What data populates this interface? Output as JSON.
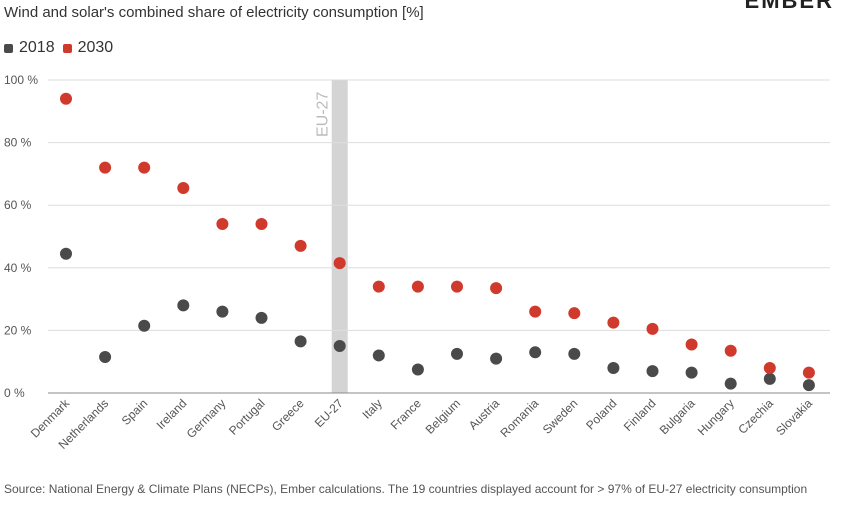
{
  "title": "Wind and solar's combined share of electricity consumption [%]",
  "logo_text": "EMBER",
  "source": "Source: National Energy & Climate Plans (NECPs), Ember calculations. The 19 countries displayed account for > 97% of EU-27 electricity consumption",
  "colors": {
    "series_2018": "#4a4a4a",
    "series_2030": "#d03a2c",
    "highlight_band": "#d4d4d4",
    "grid": "#dddddd",
    "axis": "#888888"
  },
  "chart_data": {
    "type": "scatter",
    "categories": [
      "Denmark",
      "Netherlands",
      "Spain",
      "Ireland",
      "Germany",
      "Portugal",
      "Greece",
      "EU-27",
      "Italy",
      "France",
      "Belgium",
      "Austria",
      "Romania",
      "Sweden",
      "Poland",
      "Finland",
      "Bulgaria",
      "Hungary",
      "Czechia",
      "Slovakia"
    ],
    "highlight_category": "EU-27",
    "highlight_label": "EU-27",
    "series": [
      {
        "name": "2018",
        "values": [
          44.5,
          11.5,
          21.5,
          28,
          26,
          24,
          16.5,
          15,
          12,
          7.5,
          12.5,
          11,
          13,
          12.5,
          8,
          7,
          6.5,
          3,
          4.5,
          2.5
        ]
      },
      {
        "name": "2030",
        "values": [
          94,
          72,
          72,
          65.5,
          54,
          54,
          47,
          41.5,
          34,
          34,
          34,
          33.5,
          26,
          25.5,
          22.5,
          20.5,
          15.5,
          13.5,
          8,
          6.5
        ]
      }
    ],
    "ylim": [
      0,
      100
    ],
    "yticks": [
      0,
      20,
      40,
      60,
      80,
      100
    ],
    "ytick_labels": [
      "0 %",
      "20 %",
      "40 %",
      "60 %",
      "80 %",
      "100 %"
    ],
    "grid": true,
    "legend_position": "top-left"
  }
}
